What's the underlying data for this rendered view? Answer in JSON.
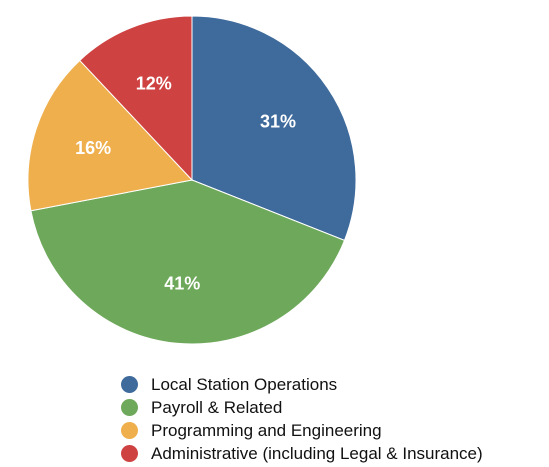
{
  "chart_data": {
    "type": "pie",
    "title": "",
    "legend_position": "bottom",
    "slices": [
      {
        "name": "Local Station Operations",
        "value": 31,
        "label": "31%",
        "color": "#3e6a9c"
      },
      {
        "name": "Payroll & Related",
        "value": 41,
        "label": "41%",
        "color": "#6ea85a"
      },
      {
        "name": "Programming and Engineering",
        "value": 16,
        "label": "16%",
        "color": "#eeaf4c"
      },
      {
        "name": "Administrative (including Legal & Insurance)",
        "value": 12,
        "label": "12%",
        "color": "#cf4242"
      }
    ]
  }
}
